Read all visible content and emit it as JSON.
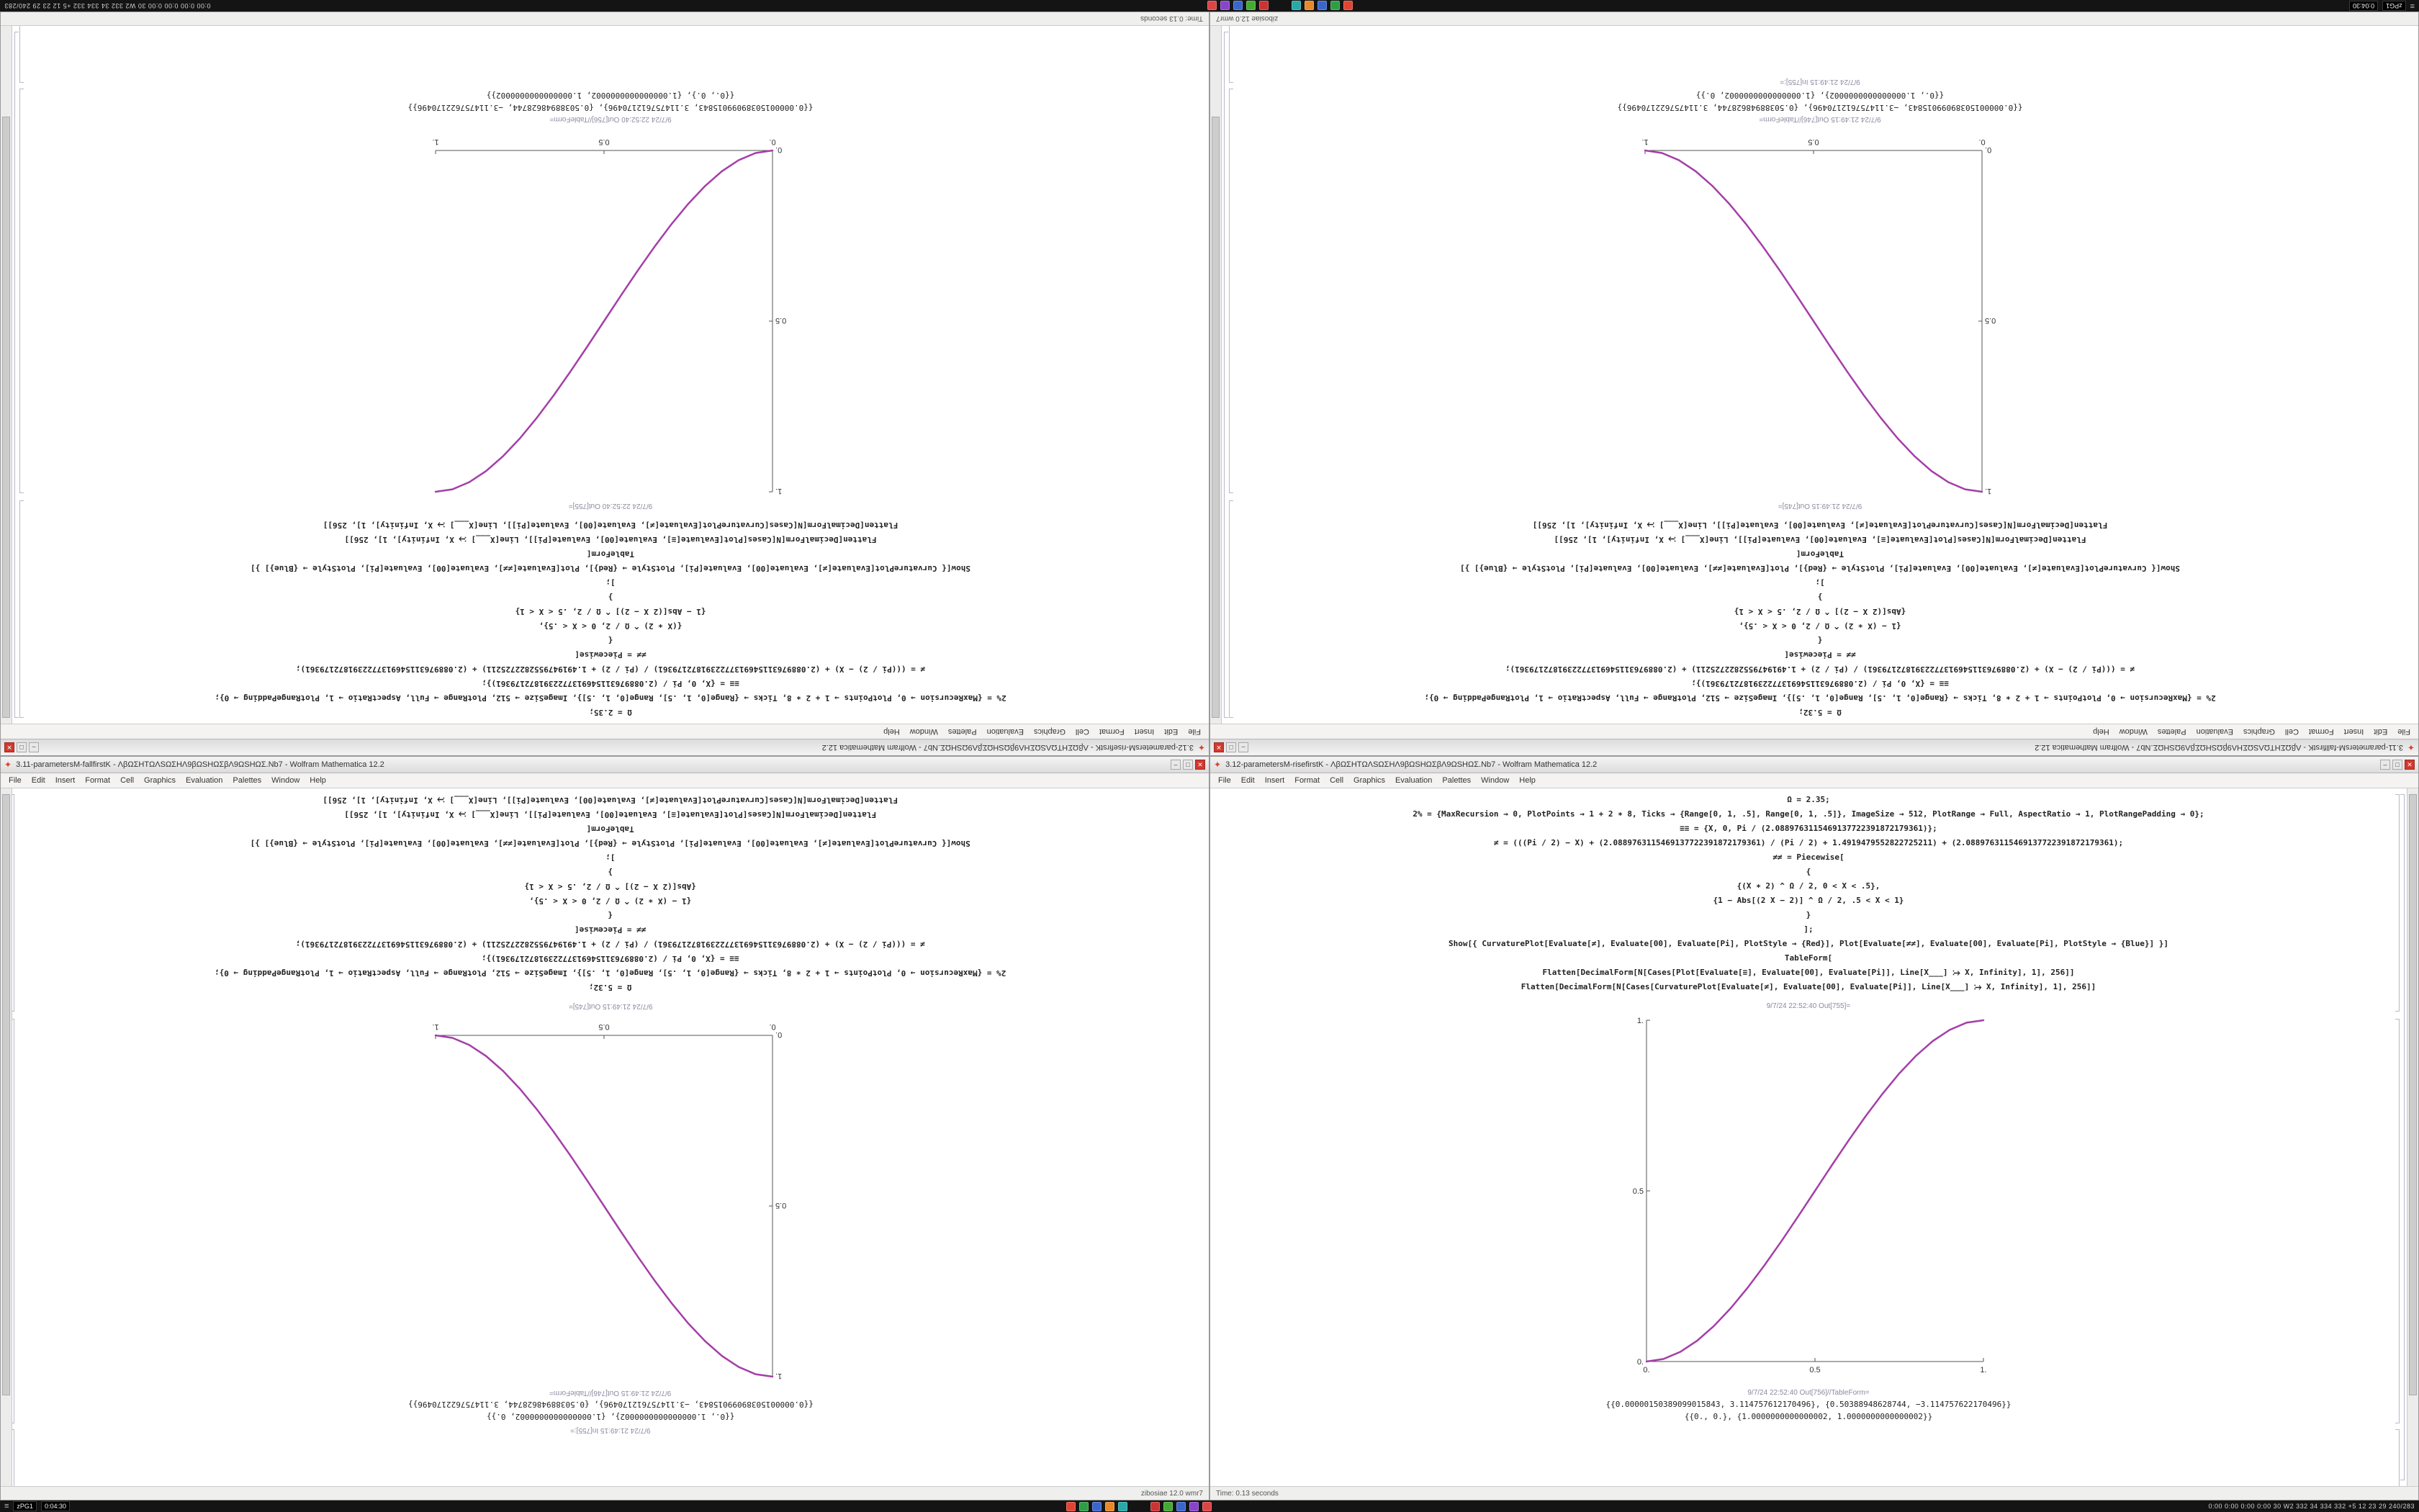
{
  "desktop": {
    "background": "#8c8c8c"
  },
  "taskbar": {
    "start_label": "≡",
    "left_chip": "zPG1",
    "left_chip2": "0:04:30",
    "right_text": "0:00  0:00  0:00  0:00  30  W2  332  34  334  332  +5  12  23  29  240/283",
    "icons": [
      {
        "name": "taskbar-app-1",
        "color": "#e04433"
      },
      {
        "name": "taskbar-app-2",
        "color": "#2e9e44"
      },
      {
        "name": "taskbar-app-3",
        "color": "#3a66cc"
      },
      {
        "name": "taskbar-app-4",
        "color": "#e8882a"
      },
      {
        "name": "taskbar-app-5",
        "color": "#28a8a8"
      },
      {
        "name": "taskbar-app-6",
        "color": "#cc3333"
      },
      {
        "name": "taskbar-app-7",
        "color": "#44aa33"
      },
      {
        "name": "taskbar-app-8",
        "color": "#3a66cc"
      },
      {
        "name": "taskbar-app-9",
        "color": "#8844cc"
      },
      {
        "name": "taskbar-app-10",
        "color": "#dd4444"
      }
    ]
  },
  "notebooks": {
    "rise": {
      "title": "3.12-parametersM-risefirstK - ΛβΩΣHTΩΛSΩΣHΛ9βΩSHΩΣβΛ9ΩSHΩΣ.Nb7 - Wolfram Mathematica 12.2",
      "menu": [
        "File",
        "Edit",
        "Insert",
        "Format",
        "Cell",
        "Graphics",
        "Evaluation",
        "Palettes",
        "Window",
        "Help"
      ],
      "code_lines": [
        "Ω = 2.35;",
        "2% = {MaxRecursion → 0, PlotPoints → 1 + 2 ∗ 8, Ticks → {Range[0, 1, .5], Range[0, 1, .5]}, ImageSize → 512, PlotRange → Full, AspectRatio → 1, PlotRangePadding → 0};",
        "≡≡ = {X, 0, Pi / (2.0889763115469137722391872179361)};",
        "≠ = (((Pi / 2) − X) + (2.0889763115469137722391872179361) / (Pi / 2) + 1.4919479552822725211) + (2.0889763115469137722391872179361);",
        "≠≠ = Piecewise[",
        "{",
        "{(X ∗ 2) ^ Ω / 2, 0 < X < .5},",
        "{1 − Abs[(2 X − 2)] ^ Ω / 2, .5 < X < 1}",
        "}",
        "];",
        "Show[{  CurvaturePlot[Evaluate[≠], Evaluate[00], Evaluate[Pi], PlotStyle → {Red}],   Plot[Evaluate[≠≠], Evaluate[00], Evaluate[Pi], PlotStyle → {Blue}]  }]",
        "TableForm[",
        "Flatten[DecimalForm[N[Cases[Plot[Evaluate[≡], Evaluate[00], Evaluate[Pi]], Line[X___] ⧴ X, Infinity], 1], 256]]",
        "Flatten[DecimalForm[N[Cases[CurvaturePlot[Evaluate[≠], Evaluate[00], Evaluate[Pi]], Line[X___] ⧴ X, Infinity], 1], 256]]"
      ],
      "out_plot_label": "9/7/24 22:52:40 Out[755]=",
      "out_table_label": "9/7/24 22:52:40 Out[756]//TableForm=",
      "out_rows": [
        "{{0.00000150389099015843, 3.114757612170496}, {0.50388948628744, −3.114757622170496}}",
        "{{0., 0.}, {1.0000000000000002, 1.0000000000000002}}"
      ],
      "trailing_label": "",
      "status_left": "Time: 0.13 seconds",
      "status_right": "",
      "chart_index": 0
    },
    "fall": {
      "title": "3.11-parametersM-fallfirstK - ΛβΩΣHTΩΛSΩΣHΛ9βΩSHΩΣβΛ9ΩSHΩΣ.Nb7 - Wolfram Mathematica 12.2",
      "menu": [
        "File",
        "Edit",
        "Insert",
        "Format",
        "Cell",
        "Graphics",
        "Evaluation",
        "Palettes",
        "Window",
        "Help"
      ],
      "code_lines": [
        "Ω = 5.32;",
        "2% = {MaxRecursion → 0, PlotPoints → 1 + 2 ∗ 8, Ticks → {Range[0, 1, .5], Range[0, 1, .5]}, ImageSize → 512, PlotRange → Full, AspectRatio → 1, PlotRangePadding → 0};",
        "≡≡ = {X, 0, Pi / (2.0889763115469137722391872179361)};",
        "≠ = (((Pi / 2) − X) + (2.0889763115469137722391872179361) / (Pi / 2) + 1.4919479552822725211) + (2.0889763115469137722391872179361);",
        "≠≠ = Piecewise[",
        "{",
        "{1 − (X ∗ 2) ^ Ω / 2, 0 < X < .5},",
        "{Abs[(2 X − 2)] ^ Ω / 2, .5 < X < 1}",
        "}",
        "];",
        "Show[{  CurvaturePlot[Evaluate[≠], Evaluate[00], Evaluate[Pi], PlotStyle → {Red}],   Plot[Evaluate[≠≠], Evaluate[00], Evaluate[Pi], PlotStyle → {Blue}]  }]",
        "TableForm[",
        "Flatten[DecimalForm[N[Cases[Plot[Evaluate[≡], Evaluate[00], Evaluate[Pi]], Line[X___] ⧴ X, Infinity], 1], 256]]",
        "Flatten[DecimalForm[N[Cases[CurvaturePlot[Evaluate[≠], Evaluate[00], Evaluate[Pi]], Line[X___] ⧴ X, Infinity], 1], 256]]"
      ],
      "out_plot_label": "9/7/24 21:49:15 Out[745]=",
      "out_table_label": "9/7/24 21:49:15 Out[746]//TableForm=",
      "out_rows": [
        "{{0.00000150389099015843, −3.114757612170496}, {0.50388948628744, 3.114757622170496}}",
        "{{0., 1.0000000000000002}, {1.0000000000000002, 0.}}"
      ],
      "trailing_label": "9/7/24 21:49:15 In[755]:=",
      "status_left": "",
      "status_right": "zibosiae 12.0 wmr7",
      "chart_index": 1
    }
  },
  "chart_data": [
    {
      "type": "line",
      "name": "rise-s-curve",
      "title": "",
      "xlabel": "",
      "ylabel": "",
      "x": [
        0,
        0.05,
        0.1,
        0.15,
        0.2,
        0.25,
        0.3,
        0.35,
        0.4,
        0.45,
        0.5,
        0.55,
        0.6,
        0.65,
        0.7,
        0.75,
        0.8,
        0.85,
        0.9,
        0.95,
        1
      ],
      "series": [
        {
          "name": "curve",
          "values": [
            0,
            0.0073,
            0.028,
            0.0608,
            0.104,
            0.1563,
            0.216,
            0.2818,
            0.352,
            0.4253,
            0.5,
            0.5748,
            0.648,
            0.7183,
            0.784,
            0.8438,
            0.896,
            0.9393,
            0.972,
            0.9928,
            1
          ]
        }
      ],
      "xticks": [
        "0.",
        "0.5",
        "1."
      ],
      "yticks": [
        "0.",
        "0.5",
        "1."
      ],
      "xtick_vals": [
        0,
        0.5,
        1
      ],
      "ytick_vals": [
        0,
        0.5,
        1
      ],
      "xlim": [
        0,
        1
      ],
      "ylim": [
        0,
        1
      ],
      "grid": false,
      "legend": false,
      "line_color": "#A43FA8",
      "axis_color": "#555555"
    },
    {
      "type": "line",
      "name": "fall-s-curve",
      "title": "",
      "xlabel": "",
      "ylabel": "",
      "x": [
        0,
        0.05,
        0.1,
        0.15,
        0.2,
        0.25,
        0.3,
        0.35,
        0.4,
        0.45,
        0.5,
        0.55,
        0.6,
        0.65,
        0.7,
        0.75,
        0.8,
        0.85,
        0.9,
        0.95,
        1
      ],
      "series": [
        {
          "name": "curve",
          "values": [
            1,
            0.9928,
            0.972,
            0.9393,
            0.896,
            0.8438,
            0.784,
            0.7183,
            0.648,
            0.5748,
            0.5,
            0.4253,
            0.352,
            0.2818,
            0.216,
            0.1563,
            0.104,
            0.0608,
            0.028,
            0.0073,
            0
          ]
        }
      ],
      "xticks": [
        "0.",
        "0.5",
        "1."
      ],
      "yticks": [
        "0.",
        "0.5",
        "1."
      ],
      "xtick_vals": [
        0,
        0.5,
        1
      ],
      "ytick_vals": [
        0,
        0.5,
        1
      ],
      "xlim": [
        0,
        1
      ],
      "ylim": [
        0,
        1
      ],
      "grid": false,
      "legend": false,
      "line_color": "#A43FA8",
      "axis_color": "#555555"
    }
  ]
}
